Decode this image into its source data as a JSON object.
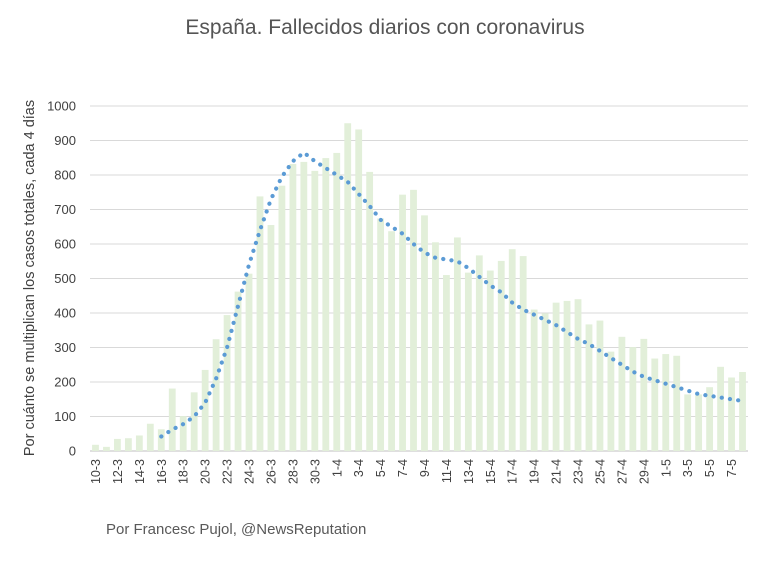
{
  "chart_data": {
    "type": "bar",
    "title": "España. Fallecidos diarios con coronavirus",
    "xlabel": "",
    "ylabel": "Por cuánto se multiplican los casos totales, cada 4 días",
    "ylim": [
      0,
      1000
    ],
    "yticks": [
      0,
      100,
      200,
      300,
      400,
      500,
      600,
      700,
      800,
      900,
      1000
    ],
    "grid": true,
    "categories": [
      "10-3",
      "11-3",
      "12-3",
      "13-3",
      "14-3",
      "15-3",
      "16-3",
      "17-3",
      "18-3",
      "19-3",
      "20-3",
      "21-3",
      "22-3",
      "23-3",
      "24-3",
      "25-3",
      "26-3",
      "27-3",
      "28-3",
      "29-3",
      "30-3",
      "31-3",
      "1-4",
      "2-4",
      "3-4",
      "4-4",
      "5-4",
      "6-4",
      "7-4",
      "8-4",
      "9-4",
      "10-4",
      "11-4",
      "12-4",
      "13-4",
      "14-4",
      "15-4",
      "16-4",
      "17-4",
      "18-4",
      "19-4",
      "20-4",
      "21-4",
      "22-4",
      "23-4",
      "24-4",
      "25-4",
      "26-4",
      "27-4",
      "28-4",
      "29-4",
      "30-4",
      "1-5",
      "2-5",
      "3-5",
      "4-5",
      "5-5",
      "6-5",
      "7-5",
      "8-5"
    ],
    "visible_tick_labels": [
      "10-3",
      "12-3",
      "14-3",
      "16-3",
      "18-3",
      "20-3",
      "22-3",
      "24-3",
      "26-3",
      "28-3",
      "30-3",
      "1-4",
      "3-4",
      "5-4",
      "7-4",
      "9-4",
      "11-4",
      "13-4",
      "15-4",
      "17-4",
      "19-4",
      "21-4",
      "23-4",
      "25-4",
      "27-4",
      "29-4",
      "1-5",
      "3-5",
      "5-5",
      "7-5"
    ],
    "series": [
      {
        "type": "bar",
        "color": "#e2efd9",
        "values": [
          18,
          12,
          35,
          37,
          45,
          79,
          63,
          181,
          101,
          170,
          235,
          324,
          394,
          462,
          514,
          738,
          655,
          769,
          832,
          838,
          812,
          849,
          864,
          950,
          932,
          809,
          674,
          637,
          743,
          757,
          683,
          605,
          510,
          619,
          517,
          567,
          523,
          551,
          585,
          565,
          410,
          399,
          430,
          435,
          440,
          367,
          378,
          288,
          331,
          301,
          325,
          268,
          281,
          276,
          164,
          164,
          185,
          244,
          213,
          229
        ]
      },
      {
        "type": "line",
        "style": "dotted",
        "color": "#5b9bd5",
        "values": [
          null,
          null,
          null,
          null,
          null,
          null,
          42,
          62,
          78,
          100,
          140,
          210,
          300,
          420,
          540,
          640,
          730,
          795,
          840,
          865,
          840,
          820,
          800,
          780,
          745,
          710,
          670,
          650,
          630,
          600,
          575,
          560,
          555,
          550,
          530,
          505,
          480,
          460,
          430,
          410,
          395,
          380,
          365,
          345,
          325,
          310,
          290,
          270,
          250,
          230,
          215,
          205,
          195,
          185,
          175,
          165,
          160,
          155,
          150,
          145
        ]
      }
    ]
  },
  "footer": {
    "credit": "Por Francesc Pujol, @NewsReputation"
  }
}
